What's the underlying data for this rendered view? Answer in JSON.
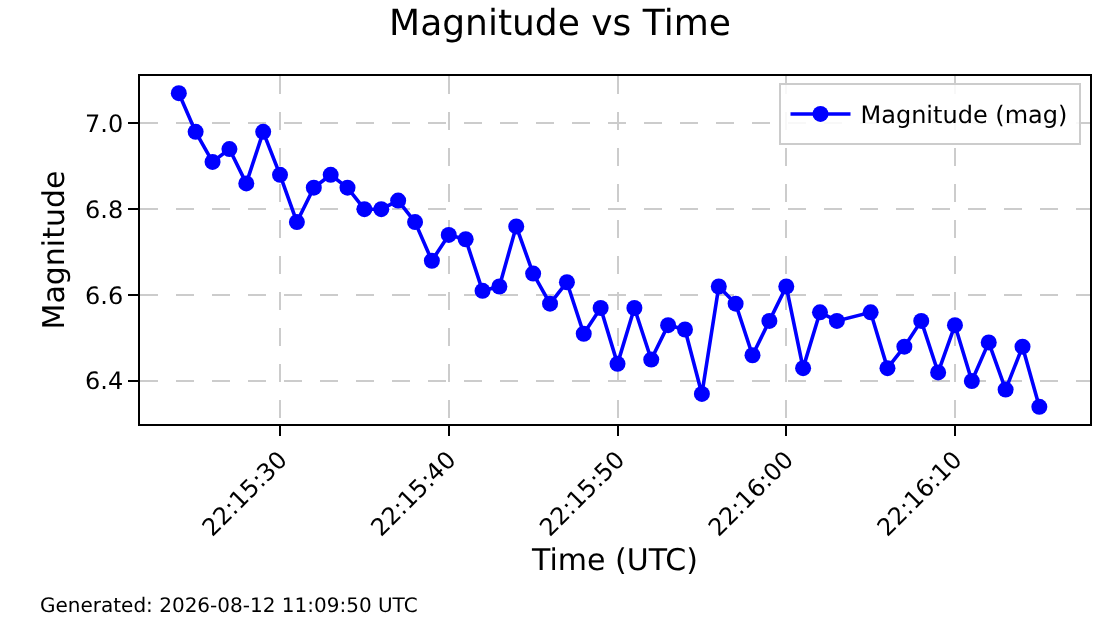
{
  "chart_data": {
    "type": "line",
    "title": "Magnitude vs Time",
    "xlabel": "Time (UTC)",
    "ylabel": "Magnitude",
    "x": [
      22.256667,
      22.256944,
      22.257222,
      22.2575,
      22.257778,
      22.258056,
      22.258333,
      22.258611,
      22.258889,
      22.259167,
      22.259444,
      22.259722,
      22.26,
      22.260278,
      22.260556,
      22.260833,
      22.261111,
      22.261389,
      22.261667,
      22.261944,
      22.262222,
      22.2625,
      22.262778,
      22.263056,
      22.263333,
      22.263611,
      22.263889,
      22.264167,
      22.264444,
      22.264722,
      22.265,
      22.265278,
      22.265556,
      22.265833,
      22.266111,
      22.266389,
      22.266667,
      22.266944,
      22.267222,
      22.2675,
      22.268056,
      22.268333,
      22.268611,
      22.268889,
      22.269167,
      22.269444,
      22.269722,
      22.27,
      22.270278,
      22.270556,
      22.270833
    ],
    "series": [
      {
        "name": "Magnitude (mag)",
        "color": "#0000ff",
        "values": [
          7.07,
          6.98,
          6.91,
          6.94,
          6.86,
          6.98,
          6.88,
          6.77,
          6.85,
          6.88,
          6.85,
          6.8,
          6.8,
          6.82,
          6.77,
          6.68,
          6.74,
          6.73,
          6.61,
          6.62,
          6.76,
          6.65,
          6.58,
          6.63,
          6.51,
          6.57,
          6.44,
          6.57,
          6.45,
          6.53,
          6.52,
          6.37,
          6.62,
          6.58,
          6.46,
          6.54,
          6.62,
          6.43,
          6.56,
          6.54,
          6.56,
          6.43,
          6.48,
          6.54,
          6.42,
          6.53,
          6.4,
          6.49,
          6.38,
          6.48,
          6.34
        ]
      }
    ],
    "xlim": [
      22.256028,
      22.271667
    ],
    "xticks": [
      {
        "value": 22.258333,
        "label": "22:15:30"
      },
      {
        "value": 22.261111,
        "label": "22:15:40"
      },
      {
        "value": 22.263889,
        "label": "22:15:50"
      },
      {
        "value": 22.266667,
        "label": "22:16:00"
      },
      {
        "value": 22.269444,
        "label": "22:16:10"
      }
    ],
    "ylim": [
      6.3,
      7.11
    ],
    "yticks": [
      6.4,
      6.6,
      6.8,
      {
        "value": 7.0,
        "label": "7.0"
      }
    ],
    "grid": true,
    "legend": "top right",
    "marker": "circle",
    "line_style": "solid",
    "annotations": [
      "Generated: 2026-08-12 11:09:50 UTC"
    ]
  }
}
